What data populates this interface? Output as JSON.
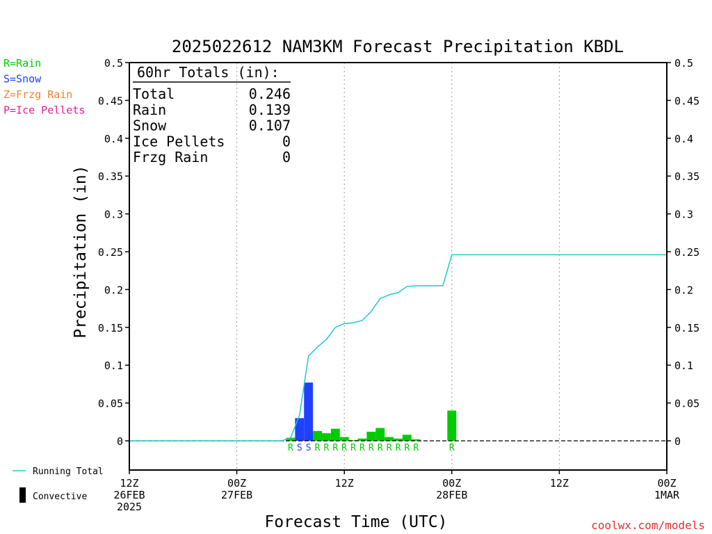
{
  "chart_data": {
    "type": "bar",
    "title": "2025022612 NAM3KM Forecast Precipitation KBDL",
    "ylabel": "Precipitation (in)",
    "xlabel": "Forecast Time (UTC)",
    "ylim": [
      -0.04,
      0.5
    ],
    "yticks": [
      "0",
      "0.05",
      "0.1",
      "0.15",
      "0.2",
      "0.25",
      "0.3",
      "0.35",
      "0.4",
      "0.45",
      "0.5"
    ],
    "ytick_values": [
      0,
      0.05,
      0.1,
      0.15,
      0.2,
      0.25,
      0.3,
      0.35,
      0.4,
      0.45,
      0.5
    ],
    "x_unit": "forecast hour",
    "xlim": [
      0,
      60
    ],
    "xticks": [
      {
        "hour": 0,
        "lines": [
          "12Z",
          "26FEB",
          "2025"
        ]
      },
      {
        "hour": 12,
        "lines": [
          "00Z",
          "27FEB"
        ]
      },
      {
        "hour": 24,
        "lines": [
          "12Z"
        ]
      },
      {
        "hour": 36,
        "lines": [
          "00Z",
          "28FEB"
        ]
      },
      {
        "hour": 48,
        "lines": [
          "12Z"
        ]
      },
      {
        "hour": 60,
        "lines": [
          "00Z",
          "1MAR"
        ]
      }
    ],
    "colors": {
      "rain": "#00cc00",
      "snow": "#2040ff",
      "frzg_rain": "#f08030",
      "ice_pellets": "#e02090",
      "running_total": "#20c8c8"
    },
    "legend_types": [
      {
        "label": "R=Rain",
        "color": "#00cc00"
      },
      {
        "label": "S=Snow",
        "color": "#2040ff"
      },
      {
        "label": "Z=Frzg Rain",
        "color": "#f08030"
      },
      {
        "label": "P=Ice Pellets",
        "color": "#e02090"
      }
    ],
    "legend_lines": {
      "running_total": "Running Total",
      "convective": "Convective"
    },
    "totals": {
      "heading": "60hr Totals (in):",
      "rows": [
        {
          "label": "Total",
          "value": "0.246"
        },
        {
          "label": "Rain",
          "value": "0.139"
        },
        {
          "label": "Snow",
          "value": "0.107"
        },
        {
          "label": "Ice Pellets",
          "value": "0"
        },
        {
          "label": "Frzg Rain",
          "value": "0"
        }
      ]
    },
    "bars": [
      {
        "hour": 18,
        "value": 0.004,
        "ptype": "R"
      },
      {
        "hour": 19,
        "value": 0.03,
        "ptype": "S"
      },
      {
        "hour": 20,
        "value": 0.077,
        "ptype": "S"
      },
      {
        "hour": 21,
        "value": 0.013,
        "ptype": "R"
      },
      {
        "hour": 22,
        "value": 0.01,
        "ptype": "R"
      },
      {
        "hour": 23,
        "value": 0.016,
        "ptype": "R"
      },
      {
        "hour": 24,
        "value": 0.005,
        "ptype": "R"
      },
      {
        "hour": 25,
        "value": 0.001,
        "ptype": "R"
      },
      {
        "hour": 26,
        "value": 0.003,
        "ptype": "R"
      },
      {
        "hour": 27,
        "value": 0.012,
        "ptype": "R"
      },
      {
        "hour": 28,
        "value": 0.017,
        "ptype": "R"
      },
      {
        "hour": 29,
        "value": 0.005,
        "ptype": "R"
      },
      {
        "hour": 30,
        "value": 0.003,
        "ptype": "R"
      },
      {
        "hour": 31,
        "value": 0.008,
        "ptype": "R"
      },
      {
        "hour": 32,
        "value": 0.002,
        "ptype": "R"
      },
      {
        "hour": 36,
        "value": 0.04,
        "ptype": "R"
      }
    ],
    "running_total": [
      {
        "hour": 0,
        "value": 0
      },
      {
        "hour": 17,
        "value": 0
      },
      {
        "hour": 18,
        "value": 0.004
      },
      {
        "hour": 19,
        "value": 0.034
      },
      {
        "hour": 20,
        "value": 0.112
      },
      {
        "hour": 21,
        "value": 0.124
      },
      {
        "hour": 22,
        "value": 0.134
      },
      {
        "hour": 23,
        "value": 0.15
      },
      {
        "hour": 24,
        "value": 0.155
      },
      {
        "hour": 25,
        "value": 0.156
      },
      {
        "hour": 26,
        "value": 0.159
      },
      {
        "hour": 27,
        "value": 0.171
      },
      {
        "hour": 28,
        "value": 0.188
      },
      {
        "hour": 29,
        "value": 0.193
      },
      {
        "hour": 30,
        "value": 0.196
      },
      {
        "hour": 31,
        "value": 0.204
      },
      {
        "hour": 32,
        "value": 0.205
      },
      {
        "hour": 35,
        "value": 0.205
      },
      {
        "hour": 36,
        "value": 0.246
      },
      {
        "hour": 60,
        "value": 0.246
      }
    ]
  },
  "credit": "coolwx.com/models"
}
